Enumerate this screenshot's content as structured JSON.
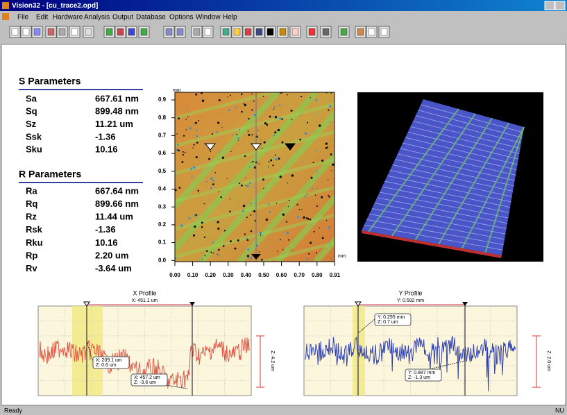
{
  "window": {
    "title": "Vision32 - [cu_trace2.opd]",
    "menu": [
      "File",
      "Edit",
      "Hardware",
      "Analysis",
      "Output",
      "Database",
      "Options",
      "Window",
      "Help"
    ],
    "status": "Ready",
    "status_right": "NU"
  },
  "s_parameters": {
    "title": "S Parameters",
    "rows": [
      [
        "Sa",
        "667.61 nm"
      ],
      [
        "Sq",
        "899.48 nm"
      ],
      [
        "Sz",
        "11.21 um"
      ],
      [
        "Ssk",
        "-1.36"
      ],
      [
        "Sku",
        "10.16"
      ]
    ]
  },
  "r_parameters": {
    "title": "R Parameters",
    "rows": [
      [
        "Ra",
        "667.64 nm"
      ],
      [
        "Rq",
        "899.66 nm"
      ],
      [
        "Rz",
        "11.44 um"
      ],
      [
        "Rsk",
        "-1.36"
      ],
      [
        "Rku",
        "10.16"
      ],
      [
        "Rp",
        "2.20 um"
      ],
      [
        "Rv",
        "-3.64 um"
      ]
    ]
  },
  "map": {
    "y_unit": "mm",
    "x_unit": "mm",
    "y_ticks": [
      "0.9",
      "0.8",
      "0.7",
      "0.6",
      "0.5",
      "0.4",
      "0.3",
      "0.2",
      "0.1",
      "0.0"
    ],
    "x_ticks": [
      "0.00",
      "0.10",
      "0.20",
      "0.30",
      "0.40",
      "0.50",
      "0.60",
      "0.70",
      "0.80",
      "0.91"
    ]
  },
  "x_profile": {
    "title": "X Profile",
    "cursor": "X: 451.1 um",
    "annotations": [
      [
        "X: 209.1 um",
        "Z: 0.6 um"
      ],
      [
        "X: 457.2 um",
        "Z: -3.6 um"
      ]
    ],
    "range": "Z: 4.2 um"
  },
  "y_profile": {
    "title": "Y Profile",
    "cursor": "Y: 0.592 mm",
    "annotations": [
      [
        "Y: 0.295 mm",
        "Z: 0.7 um"
      ],
      [
        "Y: 0.887 mm",
        "Z: -1.3 um"
      ]
    ],
    "range": "Z: 2.0 um"
  }
}
